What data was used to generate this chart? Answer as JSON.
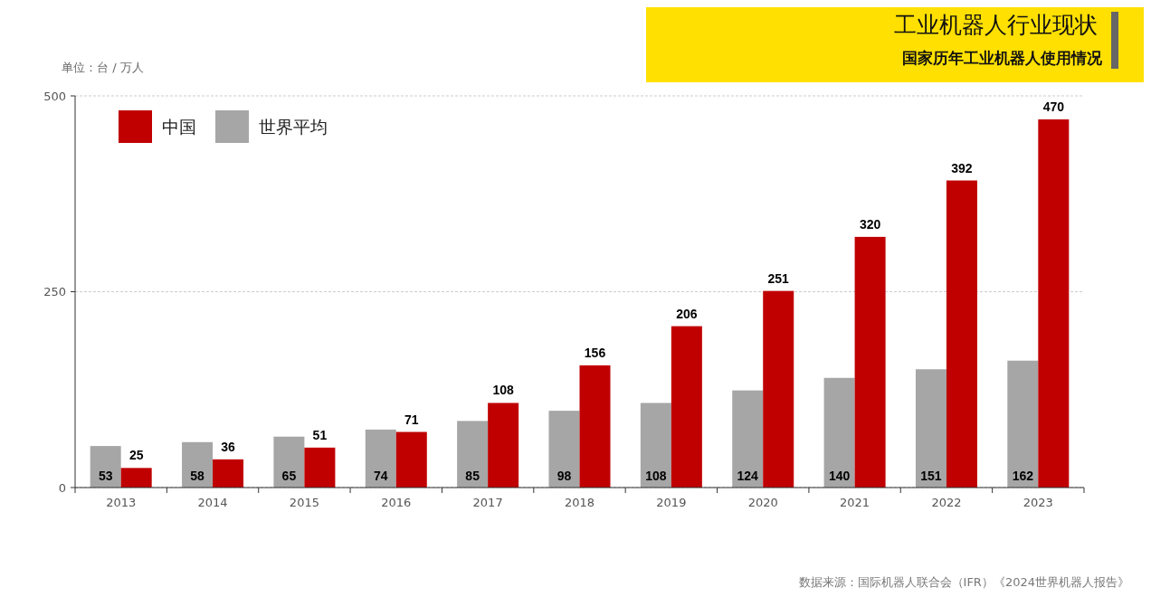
{
  "chart_data": {
    "type": "bar",
    "title": "工业机器人行业现状",
    "subtitle": "国家历年工业机器人使用情况",
    "ylabel": "单位：台 / 万人",
    "categories": [
      "2013",
      "2014",
      "2015",
      "2016",
      "2017",
      "2018",
      "2019",
      "2020",
      "2021",
      "2022",
      "2023"
    ],
    "series": [
      {
        "name": "世界平均",
        "color": "#a6a6a6",
        "values": [
          53,
          58,
          65,
          74,
          85,
          98,
          108,
          124,
          140,
          151,
          162
        ]
      },
      {
        "name": "中国",
        "color": "#c00000",
        "values": [
          25,
          36,
          51,
          71,
          108,
          156,
          206,
          251,
          320,
          392,
          470
        ]
      }
    ],
    "ylim": [
      0,
      500
    ],
    "yticks": [
      0,
      250,
      500
    ],
    "grid": "y",
    "legend": "top left",
    "data_labels": true,
    "annotations": [
      "数据来源：国际机器人联合会（IFR）《2024世界机器人报告》"
    ]
  }
}
